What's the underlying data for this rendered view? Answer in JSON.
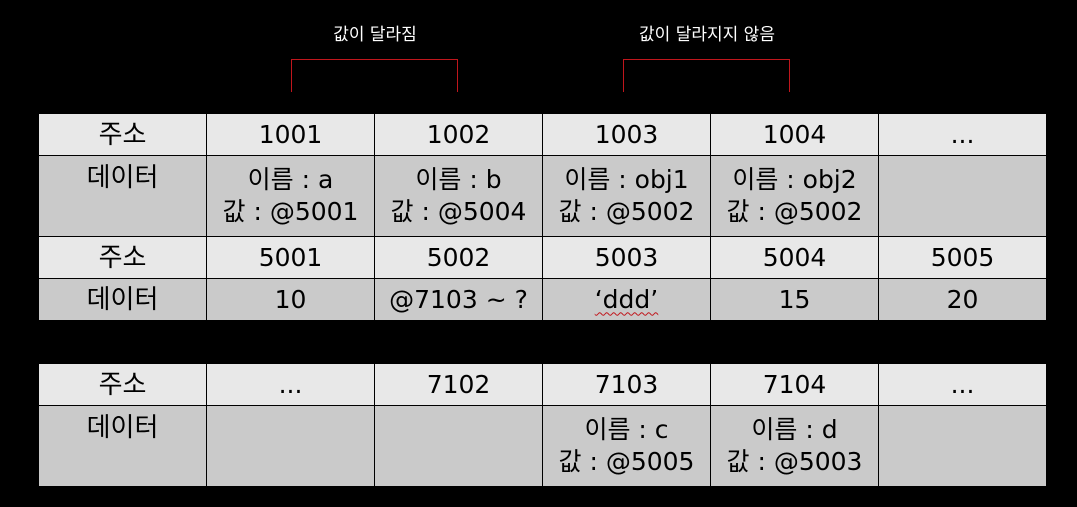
{
  "callouts": {
    "changed": "값이 달라짐",
    "unchanged": "값이 달라지지 않음"
  },
  "labels": {
    "address": "주소",
    "data": "데이터"
  },
  "table1": {
    "addresses": [
      "1001",
      "1002",
      "1003",
      "1004",
      "..."
    ],
    "cells": [
      {
        "name": "이름 : a",
        "value": "값 : @5001"
      },
      {
        "name": "이름 : b",
        "value": "값 : @5004"
      },
      {
        "name": "이름 : obj1",
        "value": "값 : @5002"
      },
      {
        "name": "이름 : obj2",
        "value": "값 : @5002"
      },
      {
        "name": "",
        "value": ""
      }
    ]
  },
  "table2": {
    "addresses": [
      "5001",
      "5002",
      "5003",
      "5004",
      "5005"
    ],
    "values": [
      "10",
      "@7103 ~ ?",
      "‘ddd’",
      "15",
      "20"
    ]
  },
  "table3": {
    "addresses": [
      "...",
      "7102",
      "7103",
      "7104",
      "..."
    ],
    "cells": [
      {
        "name": "",
        "value": ""
      },
      {
        "name": "",
        "value": ""
      },
      {
        "name": "이름 : c",
        "value": "값 : @5005"
      },
      {
        "name": "이름 : d",
        "value": "값 : @5003"
      },
      {
        "name": "",
        "value": ""
      }
    ]
  },
  "colors": {
    "background": "#000000",
    "bracket": "#c0161c",
    "address_row": "#e8e8e8",
    "data_row": "#cacaca"
  }
}
